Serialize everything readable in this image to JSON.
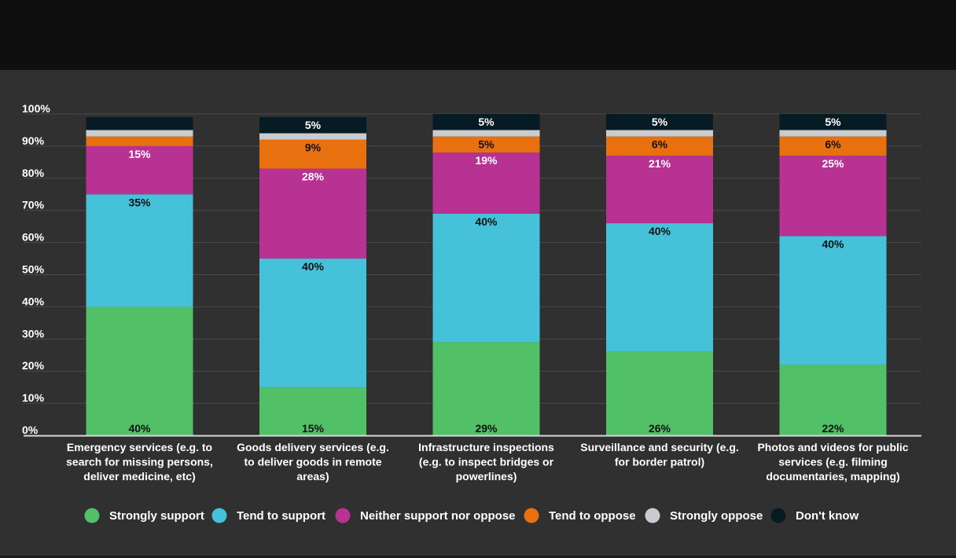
{
  "chart_data": {
    "type": "bar",
    "stacked": true,
    "title": "",
    "xlabel": "",
    "ylabel": "",
    "ylim": [
      0,
      100
    ],
    "yticks": [
      "0%",
      "10%",
      "20%",
      "30%",
      "40%",
      "50%",
      "60%",
      "70%",
      "80%",
      "90%",
      "100%"
    ],
    "grid": true,
    "legend_position": "bottom",
    "categories": [
      [
        "Emergency services (e.g. to",
        "search for missing persons,",
        "deliver medicine, etc)"
      ],
      [
        "Goods delivery services (e.g.",
        "to deliver goods in remote",
        "areas)"
      ],
      [
        "Infrastructure inspections",
        "(e.g. to inspect bridges or",
        "powerlines)"
      ],
      [
        "Surveillance and security (e.g.",
        "for border patrol)"
      ],
      [
        "Photos and videos for public",
        "services (e.g. filming",
        "documentaries, mapping)"
      ]
    ],
    "series": [
      {
        "name": "Strongly support",
        "color": "#51c066",
        "label_color": "#111111",
        "values": [
          40,
          15,
          29,
          26,
          22
        ]
      },
      {
        "name": "Tend to support",
        "color": "#45c2d9",
        "label_color": "#111111",
        "values": [
          35,
          40,
          40,
          40,
          40
        ]
      },
      {
        "name": "Neither support nor oppose",
        "color": "#b83294",
        "label_color": "#ffffff",
        "values": [
          15,
          28,
          19,
          21,
          25
        ]
      },
      {
        "name": "Tend to oppose",
        "color": "#e8700f",
        "label_color": "#111111",
        "values": [
          3,
          9,
          5,
          6,
          6
        ]
      },
      {
        "name": "Strongly oppose",
        "color": "#c8cbd0",
        "label_color": "#111111",
        "values": [
          2,
          2,
          2,
          2,
          2
        ]
      },
      {
        "name": "Don't know",
        "color": "#071b24",
        "label_color": "#ffffff",
        "values": [
          4,
          5,
          5,
          5,
          5
        ]
      }
    ],
    "data_labels": [
      [
        "40%",
        "35%",
        "15%",
        "",
        "",
        ""
      ],
      [
        "15%",
        "40%",
        "28%",
        "9%",
        "",
        "5%"
      ],
      [
        "29%",
        "40%",
        "19%",
        "5%",
        "",
        "5%"
      ],
      [
        "26%",
        "40%",
        "21%",
        "6%",
        "",
        "5%"
      ],
      [
        "22%",
        "40%",
        "25%",
        "6%",
        "",
        "5%"
      ]
    ]
  }
}
